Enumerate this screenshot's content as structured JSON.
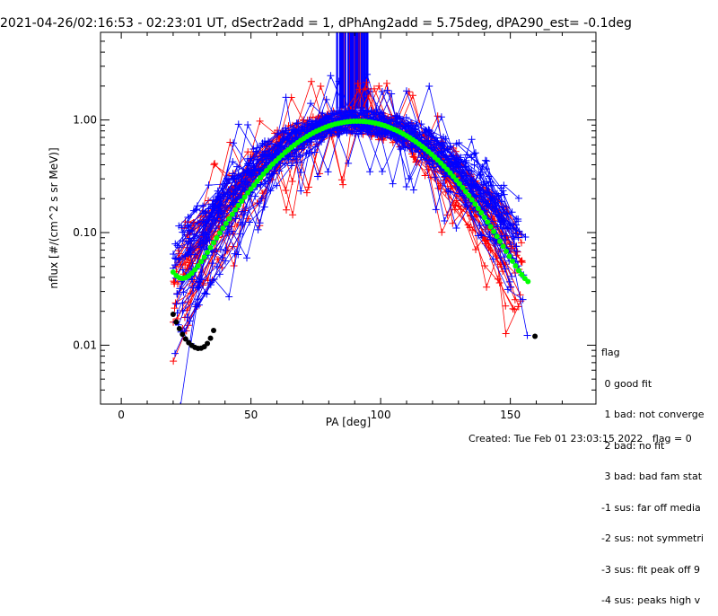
{
  "title": "2021-04-26/02:16:53 - 02:23:01 UT, dSectr2add = 1, dPhAng2add = 5.75deg, dPA290_est=  -0.1deg",
  "footer": {
    "created": "Created: Tue Feb 01 23:03:15 2022",
    "flag": "flag = 0"
  },
  "legend": {
    "title": "flag",
    "items": [
      " 0 good fit",
      " 1 bad: not converge",
      " 2 bad: no fit",
      " 3 bad: bad fam stat",
      "-1 sus: far off media",
      "-2 sus: not symmetri",
      "-3 sus: fit peak off 9",
      "-4 sus: peaks high v"
    ]
  },
  "colors": {
    "red": "#ff0000",
    "blue": "#0000ff",
    "green": "#00ff00",
    "black": "#000000"
  },
  "chart_data": {
    "type": "scatter",
    "xlabel": "PA [deg]",
    "ylabel": "nflux [#/(cm^2 s sr MeV)]",
    "xlim": [
      -8,
      183
    ],
    "ylim": [
      0.003,
      6.0
    ],
    "yscale": "log",
    "x_ticks": [
      0,
      50,
      100,
      150
    ],
    "y_ticks": [
      {
        "value": 0.01,
        "label": "0.01"
      },
      {
        "value": 0.1,
        "label": "0.10"
      },
      {
        "value": 1.0,
        "label": "1.00"
      }
    ],
    "series": [
      {
        "name": "red data (normalized nflux, many time samples)",
        "color": "red",
        "peak_center_deg": 89,
        "width_deg": 26,
        "outlier_points": [
          [
            36,
            0.41
          ],
          [
            46,
            0.21
          ]
        ]
      },
      {
        "name": "blue data (normalized nflux, many time samples)",
        "color": "blue",
        "peak_center_deg": 92,
        "width_deg": 27,
        "outlier_points": [
          [
            26,
            0.105
          ],
          [
            39,
            0.06
          ]
        ]
      },
      {
        "name": "green fit",
        "color": "green",
        "x_range": [
          20,
          157
        ],
        "peak": 0.97
      },
      {
        "name": "black fit",
        "color": "black",
        "x_range": [
          20,
          36
        ],
        "min": 0.0078
      }
    ]
  }
}
